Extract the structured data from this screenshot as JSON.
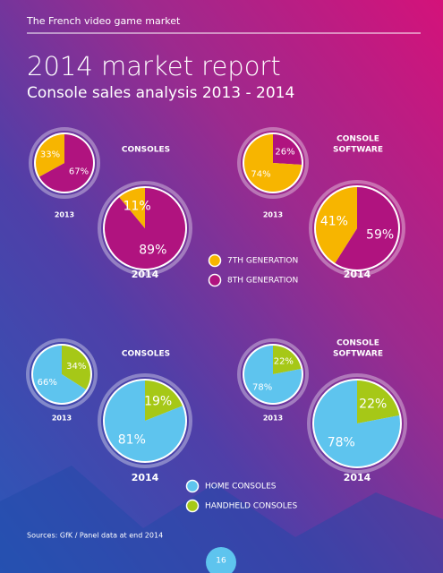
{
  "header": "The French video game market",
  "title": "2014 market report",
  "subtitle": "Console sales analysis 2013 - 2014",
  "sections": [
    {
      "lines": [
        "CONSOLES"
      ]
    },
    {
      "lines": [
        "CONSOLE",
        "SOFTWARE"
      ]
    },
    {
      "lines": [
        "CONSOLES"
      ]
    },
    {
      "lines": [
        "CONSOLE",
        "SOFTWARE"
      ]
    }
  ],
  "legends": [
    {
      "entries": [
        {
          "label": "7TH GENERATION",
          "color": "#f7b500"
        },
        {
          "label": "8TH GENERATION",
          "color": "#b0137f"
        }
      ]
    },
    {
      "entries": [
        {
          "label": "HOME CONSOLES",
          "color": "#5ec4ee"
        },
        {
          "label": "HANDHELD CONSOLES",
          "color": "#a6c817"
        }
      ]
    }
  ],
  "chart_data": [
    {
      "type": "pie",
      "title": "2013",
      "values": [
        33,
        67
      ],
      "value_labels": [
        "33%",
        "67%"
      ],
      "colors": [
        "#f7b500",
        "#b0137f"
      ]
    },
    {
      "type": "pie",
      "title": "2014",
      "values": [
        11,
        89
      ],
      "value_labels": [
        "11%",
        "89%"
      ],
      "colors": [
        "#f7b500",
        "#b0137f"
      ]
    },
    {
      "type": "pie",
      "title": "2013",
      "values": [
        74,
        26
      ],
      "value_labels": [
        "74%",
        "26%"
      ],
      "colors": [
        "#f7b500",
        "#b0137f"
      ]
    },
    {
      "type": "pie",
      "title": "2014",
      "values": [
        41,
        59
      ],
      "value_labels": [
        "41%",
        "59%"
      ],
      "colors": [
        "#f7b500",
        "#b0137f"
      ]
    },
    {
      "type": "pie",
      "title": "2013",
      "values": [
        66,
        34
      ],
      "value_labels": [
        "66%",
        "34%"
      ],
      "colors": [
        "#5ec4ee",
        "#a6c817"
      ]
    },
    {
      "type": "pie",
      "title": "2014",
      "values": [
        81,
        19
      ],
      "value_labels": [
        "81%",
        "19%"
      ],
      "colors": [
        "#5ec4ee",
        "#a6c817"
      ]
    },
    {
      "type": "pie",
      "title": "2013",
      "values": [
        78,
        22
      ],
      "value_labels": [
        "78%",
        "22%"
      ],
      "colors": [
        "#5ec4ee",
        "#a6c817"
      ]
    },
    {
      "type": "pie",
      "title": "2014",
      "values": [
        78,
        22
      ],
      "value_labels": [
        "78%",
        "22%"
      ],
      "colors": [
        "#5ec4ee",
        "#a6c817"
      ]
    }
  ],
  "source": "Sources: GfK / Panel data at end 2014",
  "page_number": "16"
}
